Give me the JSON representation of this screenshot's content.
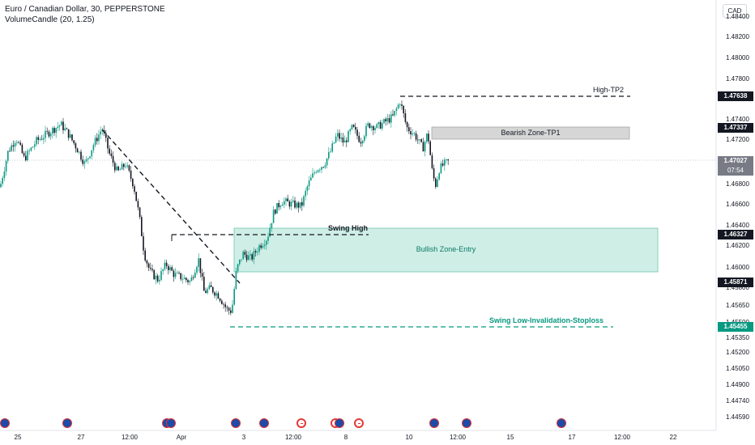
{
  "header": {
    "title": "Euro / Canadian Dollar, 30, PEPPERSTONE",
    "indicator": "VolumeCandle (20, 1.25)"
  },
  "currency_button": "CAD",
  "y_axis_ticks": [
    "1.48400",
    "1.48200",
    "1.48000",
    "1.47800",
    "1.47600",
    "1.47400",
    "1.47200",
    "1.47000",
    "1.46800",
    "1.46600",
    "1.46400",
    "1.46200",
    "1.46000",
    "1.45800",
    "1.45650",
    "1.45500",
    "1.45350",
    "1.45200",
    "1.45050",
    "1.44900",
    "1.44740",
    "1.44590"
  ],
  "x_axis_ticks": [
    "25",
    "27",
    "12:00",
    "Apr",
    "3",
    "12:00",
    "8",
    "10",
    "12:00",
    "15",
    "17",
    "12:00",
    "22"
  ],
  "price_labels": {
    "high_tp2": "1.47638",
    "bearish_tp1": "1.47337",
    "current": "1.47027",
    "countdown": "07:54",
    "swing_high": "1.46327",
    "bullish_bottom": "1.45871",
    "swing_low": "1.45455"
  },
  "annotations": {
    "high_tp2": "High-TP2",
    "bearish_zone": "Bearish Zone-TP1",
    "swing_high": "Swing High",
    "bullish_zone": "Bullish Zone-Entry",
    "swing_low": "Swing Low-Invalidation-Stoploss"
  },
  "colors": {
    "bull": "#089981",
    "bear": "#131722",
    "bullish_zone_fill": "#cfeee6",
    "bearish_zone_fill": "#d6d6d6",
    "swing_low_label": "#089981"
  },
  "economic_events": [
    "eur",
    "eur",
    "eur",
    "eur",
    "eur",
    "eur",
    "cad",
    "cad",
    "eur",
    "cad",
    "eur",
    "eur",
    "eur"
  ],
  "chart_data": {
    "type": "candlestick",
    "symbol": "EURCAD",
    "timeframe": "30",
    "ylim": [
      1.4448,
      1.4852
    ],
    "levels": {
      "high_tp2": 1.47638,
      "bearish_tp1": 1.47337,
      "current": 1.47027,
      "swing_high": 1.46327,
      "bullish_bottom": 1.45871,
      "swing_low": 1.45455
    },
    "path": [
      [
        0,
        1.4678
      ],
      [
        10,
        1.4712
      ],
      [
        20,
        1.4725
      ],
      [
        30,
        1.4705
      ],
      [
        45,
        1.4722
      ],
      [
        60,
        1.473
      ],
      [
        75,
        1.4738
      ],
      [
        85,
        1.4728
      ],
      [
        95,
        1.4715
      ],
      [
        105,
        1.47
      ],
      [
        115,
        1.4718
      ],
      [
        126,
        1.4734
      ],
      [
        135,
        1.471
      ],
      [
        145,
        1.4692
      ],
      [
        155,
        1.47
      ],
      [
        165,
        1.468
      ],
      [
        172,
        1.465
      ],
      [
        178,
        1.4615
      ],
      [
        185,
        1.4598
      ],
      [
        195,
        1.459
      ],
      [
        205,
        1.4605
      ],
      [
        215,
        1.4595
      ],
      [
        225,
        1.4592
      ],
      [
        235,
        1.4588
      ],
      [
        245,
        1.461
      ],
      [
        252,
        1.4578
      ],
      [
        260,
        1.4582
      ],
      [
        270,
        1.4575
      ],
      [
        280,
        1.4562
      ],
      [
        286,
        1.456
      ],
      [
        292,
        1.46
      ],
      [
        300,
        1.4615
      ],
      [
        310,
        1.461
      ],
      [
        320,
        1.4622
      ],
      [
        330,
        1.463
      ],
      [
        338,
        1.4655
      ],
      [
        348,
        1.4665
      ],
      [
        360,
        1.4662
      ],
      [
        372,
        1.466
      ],
      [
        380,
        1.468
      ],
      [
        390,
        1.4695
      ],
      [
        400,
        1.47
      ],
      [
        408,
        1.4712
      ],
      [
        416,
        1.4728
      ],
      [
        425,
        1.472
      ],
      [
        435,
        1.4735
      ],
      [
        445,
        1.4722
      ],
      [
        455,
        1.4738
      ],
      [
        465,
        1.4735
      ],
      [
        475,
        1.474
      ],
      [
        485,
        1.4745
      ],
      [
        494,
        1.476
      ],
      [
        502,
        1.4735
      ],
      [
        512,
        1.4728
      ],
      [
        522,
        1.4715
      ],
      [
        528,
        1.473
      ],
      [
        534,
        1.469
      ],
      [
        538,
        1.468
      ],
      [
        542,
        1.4695
      ],
      [
        548,
        1.47
      ],
      [
        555,
        1.4703
      ]
    ]
  }
}
